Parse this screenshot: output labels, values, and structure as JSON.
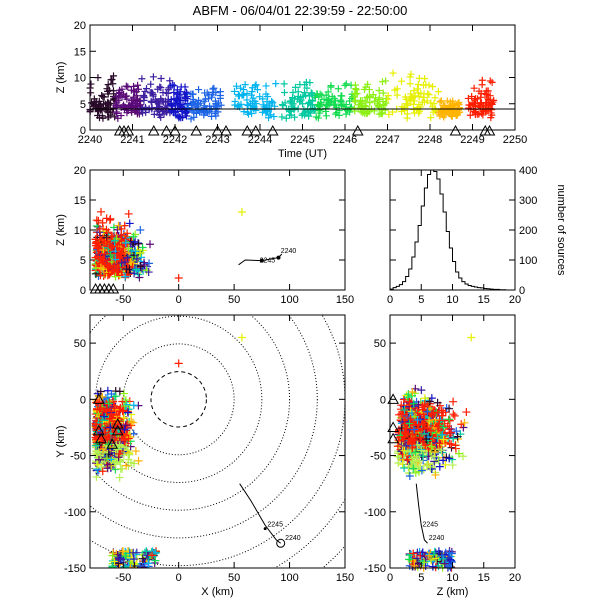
{
  "title": "ABFM - 06/04/01 22:39:59 - 22:50:00",
  "chart_data": [
    {
      "panel": "time-height",
      "type": "scatter",
      "xlabel": "Time (UT)",
      "ylabel": "Z (km)",
      "xlim": [
        2240,
        2250
      ],
      "ylim": [
        0,
        20
      ],
      "xticks": [
        "2240",
        "2241",
        "2242",
        "2243",
        "2244",
        "2245",
        "2246",
        "2247",
        "2248",
        "2249",
        "2250"
      ],
      "yticks": [
        "0",
        "5",
        "10",
        "15",
        "20"
      ],
      "groups": [
        {
          "t": [
            2240.0,
            2240.6
          ],
          "z": [
            2,
            14
          ],
          "color": "#2a0a2a"
        },
        {
          "t": [
            2240.6,
            2241.2
          ],
          "z": [
            2,
            13
          ],
          "color": "#5a0a78"
        },
        {
          "t": [
            2241.2,
            2241.9
          ],
          "z": [
            2,
            13
          ],
          "color": "#3c1ea0"
        },
        {
          "t": [
            2241.9,
            2242.3
          ],
          "z": [
            2,
            12
          ],
          "color": "#1414c8"
        },
        {
          "t": [
            2242.3,
            2243.1
          ],
          "z": [
            2,
            12
          ],
          "color": "#1e64e6"
        },
        {
          "t": [
            2243.4,
            2244.4
          ],
          "z": [
            2,
            14
          ],
          "color": "#00b4f0"
        },
        {
          "t": [
            2244.5,
            2245.3
          ],
          "z": [
            2,
            15
          ],
          "color": "#00c8a0"
        },
        {
          "t": [
            2245.3,
            2246.2
          ],
          "z": [
            2,
            13
          ],
          "color": "#14dc50"
        },
        {
          "t": [
            2246.2,
            2247.0
          ],
          "z": [
            2,
            13
          ],
          "color": "#8cf014"
        },
        {
          "t": [
            2247.0,
            2248.2
          ],
          "z": [
            2,
            16
          ],
          "color": "#e6f000"
        },
        {
          "t": [
            2248.2,
            2248.7
          ],
          "z": [
            2,
            8
          ],
          "color": "#ffb400"
        },
        {
          "t": [
            2248.9,
            2249.5
          ],
          "z": [
            2,
            12
          ],
          "color": "#ff1e00"
        }
      ],
      "reference_line_z": 4,
      "triangle_times": [
        2240.7,
        2240.8,
        2240.9,
        2241.5,
        2241.8,
        2242.0,
        2242.5,
        2243.0,
        2243.2,
        2243.7,
        2243.9,
        2244.3,
        2246.3,
        2248.6,
        2249.3,
        2249.4
      ]
    },
    {
      "panel": "x-z",
      "type": "scatter",
      "xlabel": "",
      "ylabel": "Z (km)",
      "xlim": [
        -80,
        150
      ],
      "ylim": [
        0,
        20
      ],
      "xticks": [
        "-50",
        "0",
        "50",
        "100",
        "150"
      ],
      "yticks": [
        "0",
        "5",
        "10",
        "15",
        "20"
      ],
      "cluster_x": [
        -75,
        -25
      ],
      "cluster_z": [
        0,
        16
      ],
      "outlier": {
        "x": 57,
        "z": 13
      },
      "track": [
        [
          54,
          4.2
        ],
        [
          60,
          5.0
        ],
        [
          75,
          4.9
        ],
        [
          90,
          5.4
        ],
        [
          93,
          6
        ]
      ],
      "track_labels": [
        "2245",
        "2240"
      ]
    },
    {
      "panel": "histogram",
      "type": "bar",
      "xlabel": "",
      "ylabel": "number of sources",
      "xlim": [
        0,
        20
      ],
      "ylim": [
        0,
        400
      ],
      "xticks": [
        "0",
        "5",
        "10",
        "15",
        "20"
      ],
      "yticks": [
        "0",
        "100",
        "200",
        "300",
        "400"
      ],
      "bin_width": 0.5,
      "values": [
        3,
        8,
        12,
        18,
        28,
        45,
        70,
        110,
        160,
        215,
        280,
        340,
        385,
        400,
        395,
        370,
        320,
        260,
        195,
        140,
        95,
        60,
        40,
        28,
        20,
        15,
        12,
        10,
        8,
        7,
        5,
        4,
        3,
        2,
        2,
        1,
        1,
        0,
        0,
        0
      ]
    },
    {
      "panel": "x-y",
      "type": "scatter",
      "xlabel": "X (km)",
      "ylabel": "Y (km)",
      "xlim": [
        -80,
        150
      ],
      "ylim": [
        -150,
        75
      ],
      "xticks": [
        "-50",
        "0",
        "50",
        "100",
        "150"
      ],
      "yticks": [
        "-150",
        "-100",
        "-50",
        "0",
        "50"
      ],
      "range_rings_km": [
        25,
        50,
        75,
        100,
        125,
        150,
        175,
        200
      ],
      "cluster_x": [
        -75,
        -20
      ],
      "cluster_y": [
        -80,
        10
      ],
      "bottom_cluster_x": [
        -60,
        -20
      ],
      "bottom_cluster_y": [
        -150,
        -135
      ],
      "outliers": [
        {
          "x": 57,
          "y": 55
        },
        {
          "x": 0,
          "y": 32
        }
      ],
      "track": [
        [
          55,
          -75
        ],
        [
          65,
          -90
        ],
        [
          78,
          -112
        ],
        [
          88,
          -125
        ],
        [
          92,
          -128
        ]
      ],
      "track_labels": [
        "2245",
        "2240"
      ]
    },
    {
      "panel": "z-y",
      "type": "scatter",
      "xlabel": "Z (km)",
      "ylabel": "",
      "xlim": [
        0,
        20
      ],
      "ylim": [
        -150,
        75
      ],
      "xticks": [
        "0",
        "5",
        "10",
        "15",
        "20"
      ],
      "yticks": [
        "-150",
        "-100",
        "-50",
        "0",
        "50"
      ],
      "cluster_z": [
        0,
        16
      ],
      "cluster_y": [
        -80,
        10
      ],
      "bottom_cluster_z": [
        3,
        10
      ],
      "bottom_cluster_y": [
        -150,
        -135
      ],
      "outlier": {
        "z": 13,
        "y": 55
      },
      "track": [
        [
          4.2,
          -75
        ],
        [
          4.6,
          -95
        ],
        [
          5.0,
          -112
        ],
        [
          5.5,
          -125
        ],
        [
          6,
          -128
        ]
      ],
      "track_labels": [
        "2245",
        "2240"
      ]
    }
  ]
}
